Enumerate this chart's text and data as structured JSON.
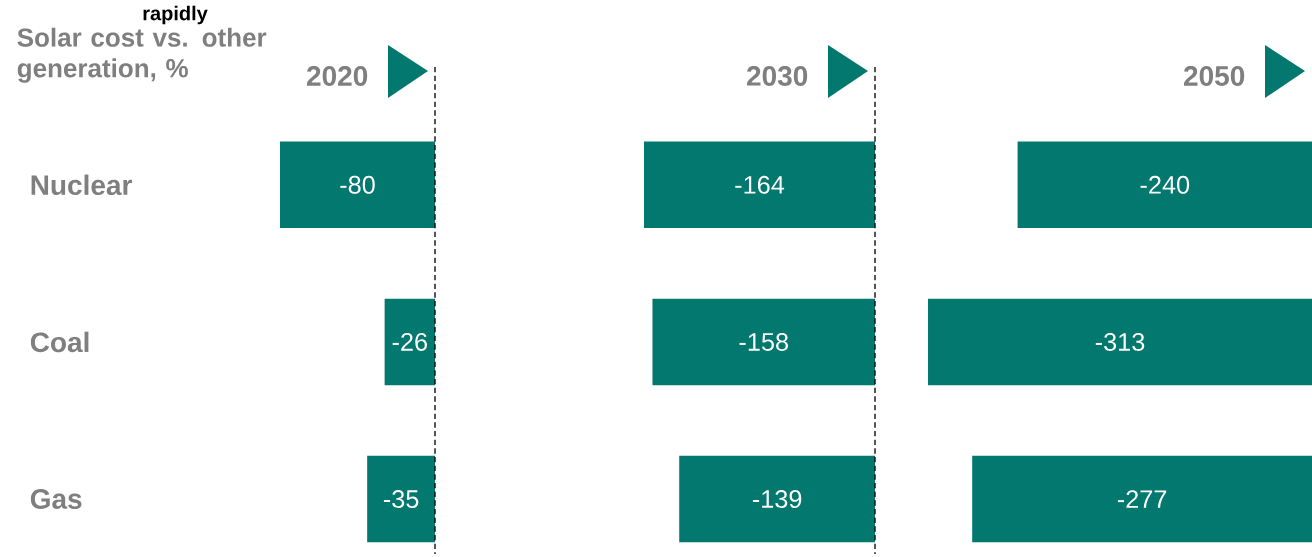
{
  "chart_data": [
    {
      "type": "bar",
      "orientation": "horizontal",
      "title": "2020",
      "subtitle": "Solar cost vs. other generation, %",
      "annotations": [
        "rapidly"
      ],
      "categories": [
        "Nuclear",
        "Coal",
        "Gas"
      ],
      "values": [
        -80,
        -26,
        -35
      ],
      "color": "#02786f",
      "data_labels": true,
      "tick_labels": "y",
      "ref_lines": [
        {
          "axis": "x",
          "value": 0,
          "line_style": "dashed",
          "color": "#000000"
        }
      ]
    },
    {
      "type": "bar",
      "orientation": "horizontal",
      "title": "2030",
      "categories": [
        null,
        null,
        null
      ],
      "values": [
        -164,
        -158,
        -139
      ],
      "color": "#02786f",
      "data_labels": true,
      "ref_lines": [
        {
          "axis": "x",
          "value": 0,
          "line_style": "dashed",
          "color": "#000000"
        }
      ]
    },
    {
      "type": "bar",
      "orientation": "horizontal",
      "title": "2050",
      "categories": [
        null,
        null,
        null
      ],
      "values": [
        -240,
        -313,
        -277
      ],
      "color": "#02786f",
      "data_labels": true
    }
  ]
}
